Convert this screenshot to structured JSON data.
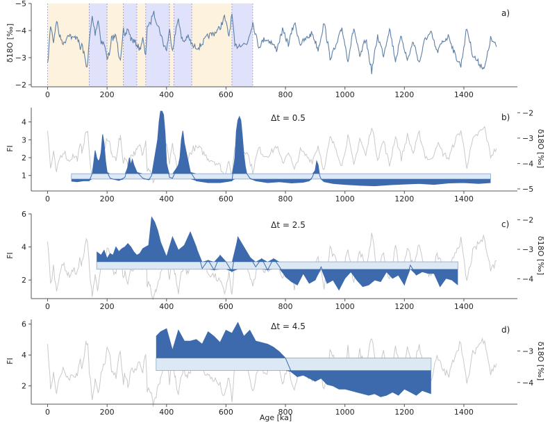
{
  "chart_data": {
    "type": "area",
    "x_label": "Age [ka]",
    "x_ticks": [
      0,
      200,
      400,
      600,
      800,
      1000,
      1200,
      1400
    ],
    "xlim": [
      -55,
      1580
    ],
    "colors": {
      "fill": "#3d6aad",
      "band": "#dce8f4",
      "band_edge": "#8aa7c9",
      "gray": "#c9c9c9",
      "shade_a": "#fdf2dd",
      "shade_b": "#e0e1fa",
      "d18o": "#5d7fa6"
    },
    "panels": [
      {
        "id": "a",
        "label": "a)",
        "ylabel": "δ18O [‰]",
        "ylim": [
          -2,
          -5
        ],
        "yticks": [
          -2,
          -3,
          -4,
          -5
        ],
        "shaded_intervals": [
          {
            "start": 0,
            "end": 140,
            "kind": "interglacial-yellow"
          },
          {
            "start": 140,
            "end": 200,
            "kind": "transition-blue"
          },
          {
            "start": 200,
            "end": 255,
            "kind": "interglacial-yellow"
          },
          {
            "start": 255,
            "end": 300,
            "kind": "transition-blue"
          },
          {
            "start": 300,
            "end": 330,
            "kind": "interglacial-yellow"
          },
          {
            "start": 330,
            "end": 410,
            "kind": "transition-blue"
          },
          {
            "start": 410,
            "end": 425,
            "kind": "interglacial-yellow"
          },
          {
            "start": 425,
            "end": 485,
            "kind": "transition-blue"
          },
          {
            "start": 485,
            "end": 620,
            "kind": "interglacial-yellow"
          },
          {
            "start": 620,
            "end": 690,
            "kind": "transition-blue"
          }
        ],
        "d18o": {
          "age": [
            0,
            10,
            20,
            30,
            40,
            55,
            70,
            85,
            100,
            110,
            115,
            125,
            130,
            135,
            140,
            150,
            160,
            170,
            180,
            190,
            200,
            210,
            215,
            230,
            240,
            245,
            255,
            260,
            270,
            280,
            290,
            300,
            310,
            320,
            330,
            335,
            345,
            355,
            365,
            380,
            390,
            400,
            410,
            420,
            430,
            440,
            450,
            460,
            470,
            480,
            490,
            510,
            525,
            540,
            560,
            580,
            595,
            610,
            620,
            630,
            650,
            670,
            690,
            710,
            730,
            750,
            770,
            790,
            810,
            830,
            850,
            870,
            890,
            910,
            930,
            950,
            970,
            990,
            1010,
            1030,
            1050,
            1070,
            1090,
            1110,
            1130,
            1150,
            1170,
            1190,
            1210,
            1230,
            1250,
            1270,
            1290,
            1310,
            1330,
            1350,
            1370,
            1390,
            1410,
            1430,
            1450,
            1470,
            1490,
            1510
          ],
          "value": [
            -2.7,
            -4.2,
            -3.6,
            -4.4,
            -3.8,
            -3.5,
            -3.9,
            -3.7,
            -3.8,
            -3.3,
            -3.5,
            -3.0,
            -2.7,
            -2.8,
            -3.6,
            -4.5,
            -3.9,
            -4.4,
            -3.6,
            -3.5,
            -3.0,
            -3.2,
            -3.7,
            -3.8,
            -3.1,
            -3.0,
            -4.0,
            -3.7,
            -4.1,
            -3.7,
            -3.6,
            -3.5,
            -3.3,
            -3.7,
            -3.0,
            -4.2,
            -4.2,
            -4.7,
            -4.4,
            -3.9,
            -3.5,
            -3.3,
            -4.0,
            -3.3,
            -3.9,
            -4.5,
            -3.7,
            -3.6,
            -3.8,
            -3.6,
            -3.4,
            -3.4,
            -3.6,
            -3.8,
            -3.9,
            -4.1,
            -4.5,
            -3.8,
            -4.6,
            -3.4,
            -3.5,
            -3.5,
            -4.3,
            -3.4,
            -3.7,
            -3.6,
            -3.3,
            -4.0,
            -3.5,
            -4.3,
            -3.5,
            -3.7,
            -3.9,
            -3.3,
            -4.3,
            -3.0,
            -3.4,
            -4.1,
            -2.9,
            -4.1,
            -3.0,
            -3.7,
            -2.5,
            -3.8,
            -3.1,
            -4.1,
            -2.9,
            -3.8,
            -2.9,
            -3.6,
            -2.8,
            -3.7,
            -3.9,
            -3.2,
            -3.6,
            -3.8,
            -3.1,
            -2.7,
            -4.1,
            -3.1,
            -2.8,
            -2.6,
            -3.7,
            -3.4
          ]
        }
      },
      {
        "id": "b",
        "label": "b)",
        "title": "Δt = 0.5",
        "ylabel": "FI",
        "ylim": [
          0.25,
          4.8
        ],
        "yticks": [
          1,
          2,
          3,
          4
        ],
        "right_ylabel": "δ18O [‰]",
        "right_yticks": [
          -2,
          -3,
          -4,
          -5
        ],
        "band": [
          0.8,
          1.1
        ],
        "fi": {
          "age": [
            80,
            100,
            120,
            140,
            150,
            155,
            160,
            165,
            170,
            175,
            180,
            185,
            190,
            195,
            200,
            210,
            220,
            240,
            260,
            270,
            275,
            280,
            285,
            290,
            300,
            320,
            340,
            350,
            360,
            370,
            375,
            380,
            385,
            390,
            395,
            400,
            410,
            420,
            440,
            445,
            450,
            455,
            460,
            470,
            480,
            500,
            540,
            580,
            620,
            630,
            635,
            640,
            645,
            650,
            655,
            660,
            665,
            670,
            680,
            700,
            740,
            780,
            820,
            860,
            880,
            890,
            900,
            905,
            910,
            915,
            920,
            930,
            960,
            1000,
            1050,
            1100,
            1150,
            1200,
            1250,
            1300,
            1350,
            1400,
            1450,
            1490
          ],
          "value": [
            0.68,
            0.65,
            0.7,
            0.7,
            1.1,
            1.7,
            2.4,
            2.0,
            1.8,
            1.9,
            2.3,
            3.3,
            2.8,
            1.8,
            1.2,
            0.85,
            0.8,
            0.72,
            0.9,
            1.5,
            2.0,
            1.6,
            1.9,
            1.6,
            1.2,
            0.85,
            0.75,
            1.0,
            2.0,
            3.0,
            4.0,
            4.6,
            4.6,
            4.4,
            3.4,
            1.7,
            0.9,
            0.85,
            1.6,
            2.0,
            3.0,
            3.5,
            2.8,
            2.0,
            1.2,
            0.7,
            0.6,
            0.6,
            0.7,
            2.0,
            3.5,
            4.1,
            4.3,
            4.1,
            3.2,
            2.2,
            1.5,
            1.1,
            0.85,
            0.7,
            0.6,
            0.65,
            0.58,
            0.62,
            0.7,
            0.9,
            1.3,
            1.8,
            1.6,
            1.0,
            0.8,
            0.65,
            0.55,
            0.5,
            0.45,
            0.42,
            0.48,
            0.52,
            0.55,
            0.5,
            0.58,
            0.6,
            0.55,
            0.6
          ]
        }
      },
      {
        "id": "c",
        "label": "c)",
        "title": "Δt = 2.5",
        "ylabel": "FI",
        "ylim": [
          1.0,
          6.0
        ],
        "yticks": [
          2,
          4,
          6
        ],
        "right_ylabel": "δ18O [‰]",
        "right_yticks": [
          -2,
          -3,
          -4
        ],
        "band": [
          2.65,
          3.1
        ],
        "fi": {
          "age": [
            165,
            180,
            190,
            200,
            210,
            220,
            230,
            240,
            250,
            260,
            270,
            280,
            290,
            300,
            310,
            320,
            330,
            340,
            350,
            360,
            370,
            380,
            400,
            420,
            440,
            460,
            480,
            500,
            520,
            540,
            560,
            580,
            600,
            620,
            640,
            660,
            680,
            700,
            720,
            740,
            760,
            780,
            800,
            820,
            840,
            860,
            880,
            900,
            920,
            940,
            960,
            980,
            1000,
            1020,
            1040,
            1060,
            1080,
            1100,
            1120,
            1140,
            1160,
            1180,
            1200,
            1220,
            1240,
            1260,
            1280,
            1300,
            1320,
            1340,
            1360,
            1380
          ],
          "value": [
            3.7,
            3.5,
            3.8,
            3.3,
            3.6,
            3.5,
            4.0,
            3.7,
            3.9,
            4.0,
            4.2,
            4.0,
            3.7,
            3.5,
            3.6,
            3.9,
            4.0,
            4.1,
            5.8,
            5.5,
            5.0,
            4.3,
            3.4,
            4.6,
            3.8,
            4.1,
            4.9,
            4.0,
            2.7,
            3.2,
            2.6,
            3.5,
            3.1,
            2.5,
            4.6,
            4.0,
            3.4,
            2.8,
            3.3,
            2.6,
            3.3,
            2.8,
            2.2,
            1.9,
            1.7,
            2.4,
            1.8,
            2.0,
            2.8,
            1.8,
            2.0,
            1.4,
            2.1,
            2.5,
            2.0,
            1.6,
            1.7,
            2.0,
            1.9,
            2.5,
            2.1,
            2.3,
            1.7,
            2.9,
            2.3,
            2.5,
            2.4,
            2.4,
            1.6,
            2.1,
            2.0,
            1.7
          ]
        }
      },
      {
        "id": "d",
        "label": "d)",
        "title": "Δt = 4.5",
        "ylabel": "FI",
        "ylim": [
          1.0,
          6.3
        ],
        "yticks": [
          2,
          4,
          6
        ],
        "right_ylabel": "δ18O [‰]",
        "right_yticks": [
          -3,
          -4
        ],
        "band": [
          3.0,
          3.8
        ],
        "fi": {
          "age": [
            365,
            380,
            400,
            420,
            440,
            460,
            480,
            500,
            520,
            540,
            560,
            580,
            600,
            620,
            640,
            660,
            680,
            700,
            720,
            740,
            760,
            780,
            800,
            820,
            840,
            860,
            880,
            900,
            920,
            940,
            960,
            980,
            1000,
            1020,
            1040,
            1060,
            1080,
            1100,
            1120,
            1140,
            1160,
            1180,
            1200,
            1220,
            1240,
            1260,
            1290
          ],
          "value": [
            5.2,
            5.5,
            5.7,
            4.3,
            5.6,
            4.9,
            4.9,
            5.0,
            4.7,
            5.5,
            5.2,
            4.8,
            5.6,
            5.4,
            6.1,
            5.2,
            5.6,
            4.9,
            4.8,
            4.7,
            4.5,
            4.2,
            3.8,
            2.9,
            2.6,
            2.7,
            2.5,
            2.3,
            2.5,
            2.1,
            2.0,
            1.8,
            1.8,
            1.7,
            1.6,
            1.5,
            1.4,
            1.5,
            1.3,
            1.4,
            1.6,
            1.4,
            1.8,
            1.6,
            1.4,
            1.7,
            1.5
          ]
        }
      }
    ]
  }
}
